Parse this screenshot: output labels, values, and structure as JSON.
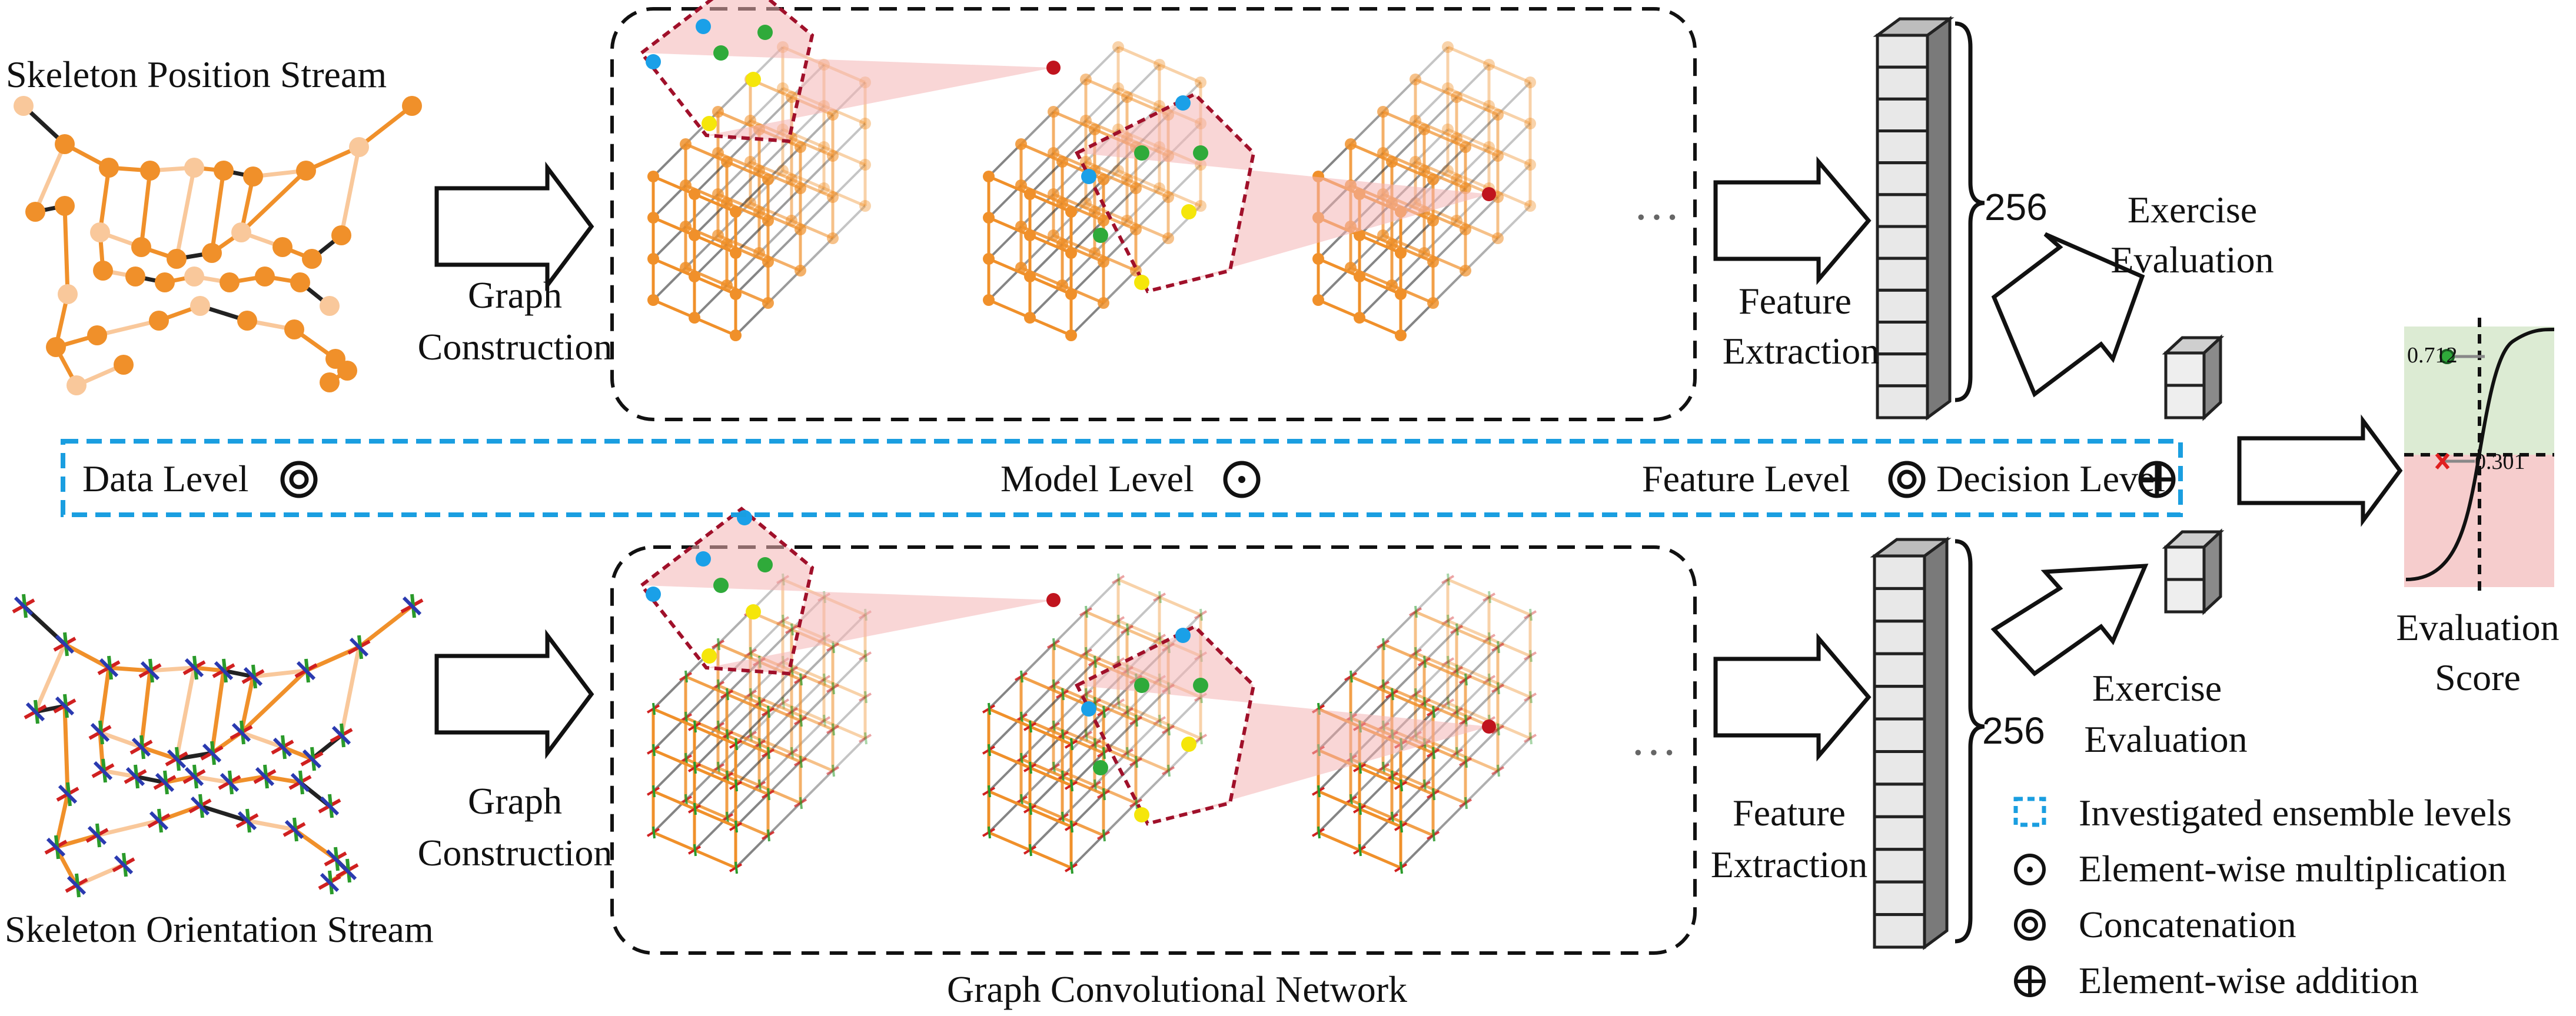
{
  "streams": {
    "position": {
      "title": "Skeleton Position Stream"
    },
    "orientation": {
      "title": "Skeleton Orientation Stream"
    }
  },
  "steps": {
    "graph_construction_top": [
      "Graph",
      "Construction"
    ],
    "graph_construction_bottom": [
      "Graph",
      "Construction"
    ],
    "feature_extraction_top": [
      "Feature",
      "Extraction"
    ],
    "feature_extraction_bottom": [
      "Feature",
      "Extraction"
    ],
    "exercise_evaluation_top": [
      "Exercise",
      "Evaluation"
    ],
    "exercise_evaluation_bottom": [
      "Exercise",
      "Evaluation"
    ],
    "ellipsis": "···"
  },
  "feature_dim": {
    "top": "256",
    "bottom": "256"
  },
  "network": {
    "label": "Graph Convolutional Network"
  },
  "ensemble_levels": {
    "data": "Data Level",
    "model": "Model Level",
    "feature": "Feature Level",
    "decision": "Decision Level"
  },
  "evaluation": {
    "label": [
      "Evaluation",
      "Score"
    ],
    "high_value": "0.712",
    "low_value": "0.301"
  },
  "legend": {
    "ensemble": "Investigated ensemble levels",
    "multiplication": "Element-wise multiplication",
    "concatenation": "Concatenation",
    "addition": "Element-wise addition"
  },
  "colors": {
    "dash_box": "#1a9ee0",
    "orange": "#f0902a",
    "light_orange": "#f9c89b",
    "red_region": "#f4b5b5",
    "region_border": "#a0102a",
    "node_blue": "#1aa0e8",
    "node_green": "#2faa3a",
    "node_yellow": "#f5e60a",
    "node_red": "#c0141e",
    "score_green": "#dcebd3",
    "score_red": "#f6cdcd"
  }
}
